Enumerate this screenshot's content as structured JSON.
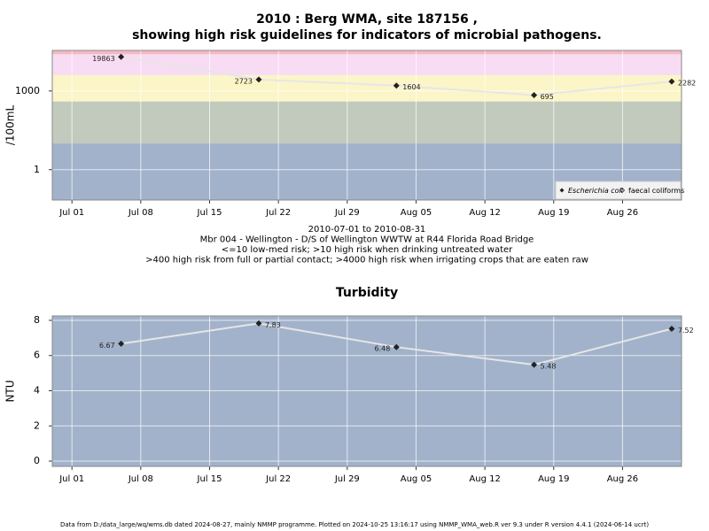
{
  "chart_data": [
    {
      "type": "line",
      "title": [
        "2010 : Berg WMA, site 187156 ,",
        "showing high risk guidelines for indicators of microbial pathogens."
      ],
      "subtitle": [
        "2010-07-01 to 2010-08-31",
        "Mbr 004 - Wellington - D/S of Wellington WWTW at R44 Florida Road Bridge",
        "<=10 low-med risk; >10 high risk when drinking untreated water",
        ">400 high risk from full or partial contact; >4000 high risk when irrigating crops that are eaten raw"
      ],
      "y_label": "/100mL",
      "x": [
        "2010-07-06",
        "2010-07-20",
        "2010-08-03",
        "2010-08-17",
        "2010-08-31"
      ],
      "series": [
        {
          "name": "Escherichia coli",
          "color": "#222222",
          "values": [
            19863,
            2723,
            1604,
            695,
            2282
          ]
        },
        {
          "name": "faecal coliforms",
          "color": "#222222",
          "values": [
            null,
            null,
            null,
            null,
            null
          ]
        }
      ],
      "log_scale": true,
      "ylim": [
        0.07,
        35000
      ],
      "yticks": [
        1,
        1000
      ],
      "xlim": [
        "2010-06-29",
        "2010-09-01"
      ],
      "xticks": [
        {
          "value": "2010-07-01",
          "label": "Jul 01"
        },
        {
          "value": "2010-07-08",
          "label": "Jul 08"
        },
        {
          "value": "2010-07-15",
          "label": "Jul 15"
        },
        {
          "value": "2010-07-22",
          "label": "Jul 22"
        },
        {
          "value": "2010-07-29",
          "label": "Jul 29"
        },
        {
          "value": "2010-08-05",
          "label": "Aug 05"
        },
        {
          "value": "2010-08-12",
          "label": "Aug 12"
        },
        {
          "value": "2010-08-19",
          "label": "Aug 19"
        },
        {
          "value": "2010-08-26",
          "label": "Aug 26"
        }
      ],
      "bands": [
        {
          "from": 0.07,
          "to": 10,
          "color": "#a2b2cb"
        },
        {
          "from": 10,
          "to": 400,
          "color": "#c2cabd"
        },
        {
          "from": 400,
          "to": 4000,
          "color": "#fbf5c8"
        },
        {
          "from": 4000,
          "to": 25000,
          "color": "#f8dcf3"
        },
        {
          "from": 25000,
          "to": 35000,
          "color": "#f4b8c4"
        }
      ],
      "grid": true,
      "legend": "lower right"
    },
    {
      "type": "line",
      "title": [
        "Turbidity"
      ],
      "y_label": "NTU",
      "x": [
        "2010-07-06",
        "2010-07-20",
        "2010-08-03",
        "2010-08-17",
        "2010-08-31"
      ],
      "series": [
        {
          "name": "Turbidity",
          "color": "#222222",
          "values": [
            6.67,
            7.83,
            6.48,
            5.48,
            7.52
          ]
        }
      ],
      "log_scale": false,
      "ylim": [
        -0.3,
        8.25
      ],
      "yticks": [
        0,
        2,
        4,
        6,
        8
      ],
      "xlim": [
        "2010-06-29",
        "2010-09-01"
      ],
      "xticks": [
        {
          "value": "2010-07-01",
          "label": "Jul 01"
        },
        {
          "value": "2010-07-08",
          "label": "Jul 08"
        },
        {
          "value": "2010-07-15",
          "label": "Jul 15"
        },
        {
          "value": "2010-07-22",
          "label": "Jul 22"
        },
        {
          "value": "2010-07-29",
          "label": "Jul 29"
        },
        {
          "value": "2010-08-05",
          "label": "Aug 05"
        },
        {
          "value": "2010-08-12",
          "label": "Aug 12"
        },
        {
          "value": "2010-08-19",
          "label": "Aug 19"
        },
        {
          "value": "2010-08-26",
          "label": "Aug 26"
        }
      ],
      "bands": [
        {
          "from": -0.3,
          "to": 8.25,
          "color": "#a2b2cb"
        }
      ],
      "grid": true
    }
  ],
  "footer": "Data from D:/data_large/wq/wms.db dated 2024-08-27, mainly NMMP programme. Plotted on 2024-10-25 13:16:17 using NMMP_WMA_web.R ver 9.3 under R version 4.4.1 (2024-06-14 ucrt)"
}
